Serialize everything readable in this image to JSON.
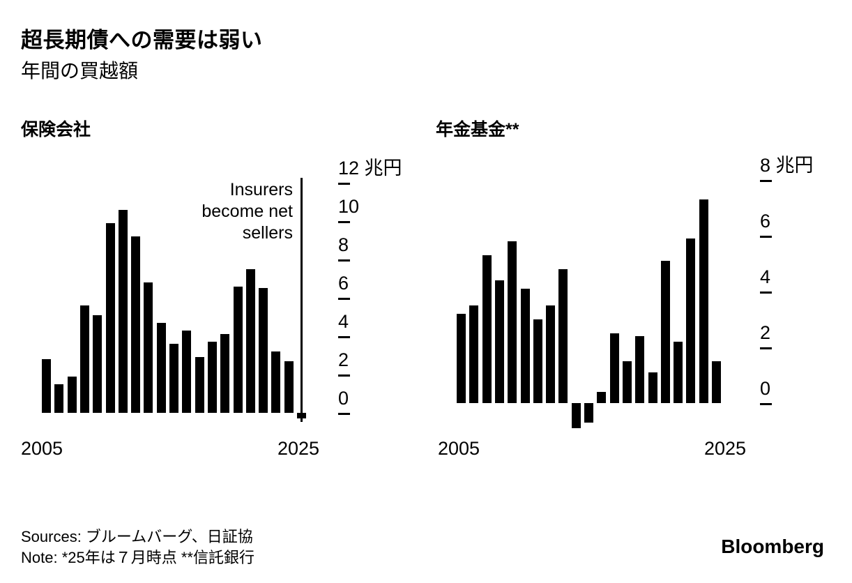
{
  "header": {
    "title": "超長期債への需要は弱い",
    "subtitle": "年間の買越額"
  },
  "footer": {
    "sources": "Sources: ブルームバーグ、日証協",
    "note": "Note: *25年は７月時点 **信託銀行",
    "logo": "Bloomberg"
  },
  "colors": {
    "bar": "#000000",
    "background": "#ffffff",
    "text": "#000000"
  },
  "chart_data": [
    {
      "type": "bar",
      "title": "保険会社",
      "unit_label": "兆円",
      "x": [
        2005,
        2006,
        2007,
        2008,
        2009,
        2010,
        2011,
        2012,
        2013,
        2014,
        2015,
        2016,
        2017,
        2018,
        2019,
        2020,
        2021,
        2022,
        2023,
        2024,
        2025
      ],
      "values": [
        2.8,
        1.5,
        1.9,
        5.6,
        5.1,
        9.9,
        10.6,
        9.2,
        6.8,
        4.7,
        3.6,
        4.3,
        2.9,
        3.7,
        4.1,
        6.6,
        7.5,
        6.5,
        3.2,
        2.7,
        -0.3
      ],
      "yticks": [
        12,
        10,
        8,
        6,
        4,
        2,
        0
      ],
      "ylim": [
        -1.3,
        13
      ],
      "xtick_labels": [
        "2005",
        "2025"
      ],
      "xlabel": "",
      "ylabel": "兆円",
      "annotation": "Insurers\nbecome net\nsellers",
      "legend": null,
      "grid": false
    },
    {
      "type": "bar",
      "title": "年金基金**",
      "unit_label": "兆円",
      "x": [
        2005,
        2006,
        2007,
        2008,
        2009,
        2010,
        2011,
        2012,
        2013,
        2014,
        2015,
        2016,
        2017,
        2018,
        2019,
        2020,
        2021,
        2022,
        2023,
        2024,
        2025
      ],
      "values": [
        3.2,
        3.5,
        5.3,
        4.4,
        5.8,
        4.1,
        3.0,
        3.5,
        4.8,
        -0.9,
        -0.7,
        0.4,
        2.5,
        1.5,
        2.4,
        1.1,
        5.1,
        2.2,
        5.9,
        7.3,
        1.5
      ],
      "yticks": [
        8,
        6,
        4,
        2,
        0
      ],
      "ylim": [
        -1.2,
        8.6
      ],
      "xtick_labels": [
        "2005",
        "2025"
      ],
      "xlabel": "",
      "ylabel": "兆円",
      "annotation": null,
      "legend": null,
      "grid": false
    }
  ]
}
